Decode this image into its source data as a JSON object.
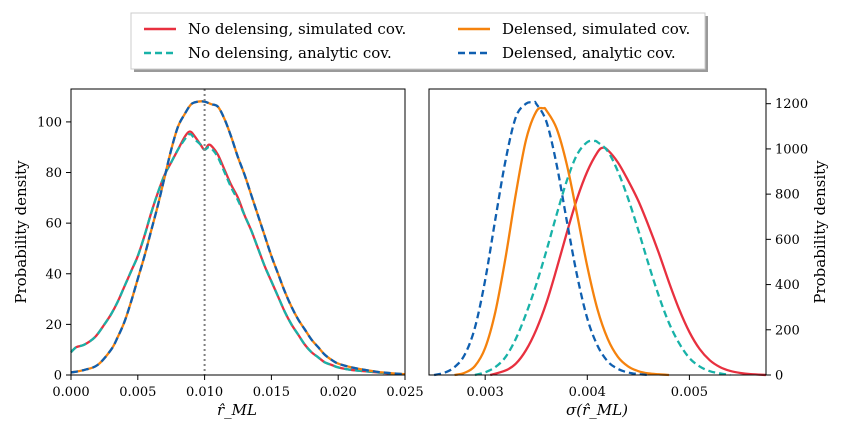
{
  "legend": {
    "entries": [
      {
        "label": "No delensing, simulated cov.",
        "color": "#e8303f",
        "dash": "solid"
      },
      {
        "label": "Delensed, simulated cov.",
        "color": "#f5820d",
        "dash": "solid"
      },
      {
        "label": "No delensing, analytic cov.",
        "color": "#18b2a8",
        "dash": "dashed"
      },
      {
        "label": "Delensed, analytic cov.",
        "color": "#0f5fb0",
        "dash": "dashed"
      }
    ]
  },
  "chart_data": [
    {
      "type": "line",
      "xlabel": "r̂_ML",
      "ylabel": "Probability density",
      "xlim": [
        0.0,
        0.025
      ],
      "ylim": [
        0,
        113
      ],
      "xticks": [
        0.0,
        0.005,
        0.01,
        0.015,
        0.02,
        0.025
      ],
      "xtick_labels": [
        "0.000",
        "0.005",
        "0.010",
        "0.015",
        "0.020",
        "0.025"
      ],
      "yticks": [
        0,
        20,
        40,
        60,
        80,
        100
      ],
      "yaxis_side": "left",
      "vline": {
        "x": 0.01,
        "style": "dotted",
        "color": "#808080"
      },
      "series": [
        {
          "name": "No delensing, simulated cov.",
          "color": "#e8303f",
          "dash": "solid",
          "x": [
            0.0,
            0.0004,
            0.001,
            0.0018,
            0.0025,
            0.003,
            0.0035,
            0.004,
            0.0045,
            0.005,
            0.0055,
            0.006,
            0.0065,
            0.007,
            0.0075,
            0.008,
            0.0085,
            0.0088,
            0.009,
            0.0093,
            0.0097,
            0.01,
            0.0103,
            0.0106,
            0.011,
            0.0115,
            0.012,
            0.0125,
            0.013,
            0.0135,
            0.014,
            0.0145,
            0.015,
            0.0155,
            0.016,
            0.0165,
            0.017,
            0.0175,
            0.018,
            0.0185,
            0.019,
            0.0195,
            0.02,
            0.021,
            0.022,
            0.023,
            0.024,
            0.025
          ],
          "y": [
            9,
            11,
            12,
            15,
            20,
            24,
            29,
            35,
            41,
            47,
            55,
            64,
            72,
            79,
            84,
            89,
            94,
            96,
            96,
            94,
            91,
            89,
            91,
            90,
            87,
            81,
            75,
            70,
            63,
            57,
            50,
            43,
            37,
            31,
            25,
            20,
            16,
            12,
            9,
            7,
            5,
            4,
            3,
            2,
            1.5,
            1,
            0.5,
            0.3
          ]
        },
        {
          "name": "No delensing, analytic cov.",
          "color": "#18b2a8",
          "dash": "dashed",
          "x": [
            0.0,
            0.0004,
            0.001,
            0.0018,
            0.0025,
            0.003,
            0.0035,
            0.004,
            0.0045,
            0.005,
            0.0055,
            0.006,
            0.0065,
            0.007,
            0.0075,
            0.008,
            0.0085,
            0.0088,
            0.009,
            0.0093,
            0.0097,
            0.01,
            0.0103,
            0.0106,
            0.011,
            0.0115,
            0.012,
            0.0125,
            0.013,
            0.0135,
            0.014,
            0.0145,
            0.015,
            0.0155,
            0.016,
            0.0165,
            0.017,
            0.0175,
            0.018,
            0.0185,
            0.019,
            0.0195,
            0.02,
            0.021,
            0.022,
            0.023,
            0.024,
            0.025
          ],
          "y": [
            9,
            11,
            12,
            15,
            20,
            24,
            29,
            35,
            41,
            47,
            55,
            64,
            72,
            79,
            84,
            89,
            93,
            95,
            95,
            93,
            91,
            89,
            90,
            89,
            86,
            80,
            74,
            69,
            63,
            57,
            50,
            43,
            37,
            31,
            25,
            20,
            16,
            12,
            9,
            7,
            5,
            4,
            3,
            2,
            1.5,
            1,
            0.5,
            0.3
          ]
        },
        {
          "name": "Delensed, simulated cov.",
          "color": "#f5820d",
          "dash": "solid",
          "x": [
            0.0,
            0.001,
            0.002,
            0.003,
            0.0035,
            0.004,
            0.0045,
            0.005,
            0.0055,
            0.006,
            0.0065,
            0.007,
            0.0075,
            0.008,
            0.0085,
            0.009,
            0.0095,
            0.01,
            0.0105,
            0.011,
            0.0115,
            0.012,
            0.0125,
            0.013,
            0.0135,
            0.014,
            0.0145,
            0.015,
            0.0155,
            0.016,
            0.0165,
            0.017,
            0.0175,
            0.018,
            0.0185,
            0.019,
            0.0195,
            0.02,
            0.021,
            0.022,
            0.023,
            0.024,
            0.025
          ],
          "y": [
            1,
            2,
            4,
            10,
            15,
            21,
            29,
            38,
            47,
            57,
            67,
            78,
            89,
            98,
            103,
            107,
            108,
            108,
            107,
            106,
            101,
            94,
            86,
            79,
            71,
            63,
            55,
            47,
            40,
            33,
            27,
            22,
            18,
            14,
            11,
            8,
            6,
            4.5,
            3,
            2,
            1.2,
            0.7,
            0.3
          ]
        },
        {
          "name": "Delensed, analytic cov.",
          "color": "#0f5fb0",
          "dash": "dashed",
          "x": [
            0.0,
            0.001,
            0.002,
            0.003,
            0.0035,
            0.004,
            0.0045,
            0.005,
            0.0055,
            0.006,
            0.0065,
            0.007,
            0.0075,
            0.008,
            0.0085,
            0.009,
            0.0095,
            0.01,
            0.0105,
            0.011,
            0.0115,
            0.012,
            0.0125,
            0.013,
            0.0135,
            0.014,
            0.0145,
            0.015,
            0.0155,
            0.016,
            0.0165,
            0.017,
            0.0175,
            0.018,
            0.0185,
            0.019,
            0.0195,
            0.02,
            0.021,
            0.022,
            0.023,
            0.024,
            0.025
          ],
          "y": [
            1,
            2,
            4,
            10,
            15,
            21,
            29,
            38,
            47,
            57,
            67,
            78,
            89,
            98,
            103,
            107,
            108,
            108,
            107,
            106,
            101,
            94,
            86,
            79,
            71,
            63,
            55,
            47,
            40,
            33,
            27,
            22,
            18,
            14,
            11,
            8,
            6,
            4.5,
            3,
            2,
            1.2,
            0.7,
            0.3
          ]
        }
      ]
    },
    {
      "type": "line",
      "xlabel": "σ(r̂_ML)",
      "ylabel": "Probability density",
      "xlim": [
        0.00245,
        0.00575
      ],
      "ylim": [
        0,
        1265
      ],
      "xticks": [
        0.003,
        0.004,
        0.005
      ],
      "xtick_labels": [
        "0.003",
        "0.004",
        "0.005"
      ],
      "yticks": [
        0,
        200,
        400,
        600,
        800,
        1000,
        1200
      ],
      "yaxis_side": "right",
      "series": [
        {
          "name": "No delensing, simulated cov.",
          "color": "#e8303f",
          "dash": "solid",
          "x": [
            0.00305,
            0.0032,
            0.0033,
            0.0034,
            0.0035,
            0.0036,
            0.0037,
            0.0038,
            0.0039,
            0.004,
            0.0041,
            0.00415,
            0.0042,
            0.0043,
            0.0044,
            0.0045,
            0.0046,
            0.0047,
            0.0048,
            0.0049,
            0.005,
            0.0051,
            0.0052,
            0.0053,
            0.0054,
            0.0055,
            0.0056,
            0.00575
          ],
          "y": [
            0,
            20,
            50,
            110,
            200,
            320,
            470,
            630,
            780,
            900,
            985,
            1005,
            995,
            940,
            860,
            770,
            660,
            540,
            410,
            290,
            190,
            115,
            65,
            35,
            18,
            9,
            4,
            0
          ]
        },
        {
          "name": "No delensing, analytic cov.",
          "color": "#18b2a8",
          "dash": "dashed",
          "x": [
            0.0029,
            0.003,
            0.0031,
            0.0032,
            0.0033,
            0.0034,
            0.0035,
            0.0036,
            0.0037,
            0.0038,
            0.0039,
            0.004,
            0.00407,
            0.0041,
            0.0042,
            0.0043,
            0.0044,
            0.0045,
            0.0046,
            0.0047,
            0.0048,
            0.0049,
            0.005,
            0.0051,
            0.0052,
            0.0053,
            0.0054
          ],
          "y": [
            0,
            12,
            35,
            80,
            160,
            270,
            400,
            550,
            710,
            860,
            975,
            1030,
            1035,
            1030,
            990,
            900,
            780,
            640,
            490,
            350,
            230,
            140,
            75,
            38,
            17,
            7,
            0
          ]
        },
        {
          "name": "Delensed, simulated cov.",
          "color": "#f5820d",
          "dash": "solid",
          "x": [
            0.0027,
            0.0028,
            0.0029,
            0.003,
            0.0031,
            0.0032,
            0.0033,
            0.0034,
            0.0035,
            0.00357,
            0.0036,
            0.0037,
            0.0038,
            0.0039,
            0.004,
            0.0041,
            0.0042,
            0.0043,
            0.0044,
            0.0045,
            0.0046,
            0.0047,
            0.0048
          ],
          "y": [
            0,
            10,
            40,
            120,
            280,
            520,
            800,
            1040,
            1165,
            1180,
            1170,
            1090,
            930,
            710,
            480,
            290,
            160,
            80,
            38,
            17,
            7,
            3,
            0
          ]
        },
        {
          "name": "Delensed, analytic cov.",
          "color": "#0f5fb0",
          "dash": "dashed",
          "x": [
            0.0025,
            0.0026,
            0.0027,
            0.0028,
            0.0029,
            0.003,
            0.0031,
            0.0032,
            0.0033,
            0.0034,
            0.00348,
            0.0035,
            0.0036,
            0.0037,
            0.0038,
            0.0039,
            0.004,
            0.0041,
            0.0042,
            0.0043,
            0.0044,
            0.0045,
            0.0046
          ],
          "y": [
            0,
            10,
            35,
            90,
            210,
            420,
            690,
            950,
            1140,
            1200,
            1205,
            1200,
            1120,
            930,
            680,
            440,
            250,
            130,
            60,
            27,
            11,
            4,
            0
          ]
        }
      ]
    }
  ]
}
